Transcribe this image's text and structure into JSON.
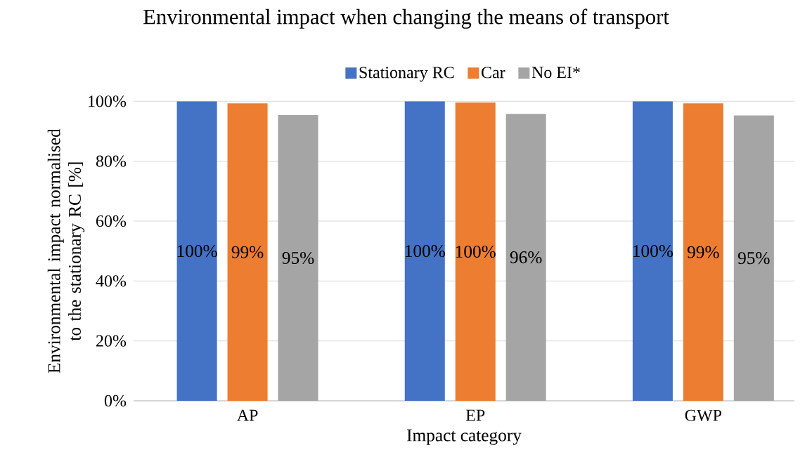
{
  "chart_data": {
    "type": "bar",
    "title": "Environmental impact when changing the means of transport",
    "xlabel": "Impact category",
    "ylabel": "Environmental impact normalised to the stationary RC [%]",
    "categories": [
      "AP",
      "EP",
      "GWP"
    ],
    "series": [
      {
        "name": "Stationary RC",
        "color": "#4472c4",
        "values": [
          100,
          100,
          100
        ],
        "value_labels": [
          "100%",
          "100%",
          "100%"
        ]
      },
      {
        "name": "Car",
        "color": "#ed7d31",
        "values": [
          99.3,
          99.6,
          99.3
        ],
        "value_labels": [
          "99%",
          "100%",
          "99%"
        ]
      },
      {
        "name": "No EI*",
        "color": "#a5a5a5",
        "values": [
          95.4,
          95.8,
          95.3
        ],
        "value_labels": [
          "95%",
          "96%",
          "95%"
        ]
      }
    ],
    "ylim": [
      0,
      100
    ],
    "yticks": [
      {
        "value": 0,
        "label": "0%"
      },
      {
        "value": 20,
        "label": "20%"
      },
      {
        "value": 40,
        "label": "40%"
      },
      {
        "value": 60,
        "label": "60%"
      },
      {
        "value": 80,
        "label": "80%"
      },
      {
        "value": 100,
        "label": "100%"
      }
    ],
    "grid": "y",
    "legend": "top"
  }
}
